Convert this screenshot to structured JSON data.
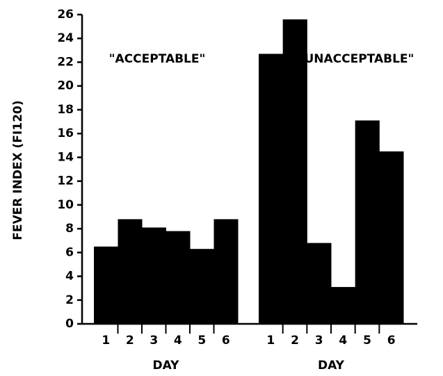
{
  "chart_data": {
    "type": "bar",
    "ylabel": "FEVER INDEX (FI120)",
    "color": "#000000",
    "ylim": [
      0,
      26
    ],
    "yticks": [
      0,
      2,
      4,
      6,
      8,
      10,
      12,
      14,
      16,
      18,
      20,
      22,
      24,
      26
    ],
    "groups": [
      {
        "label": "\"ACCEPTABLE\"",
        "xlabel": "DAY",
        "categories": [
          "1",
          "2",
          "3",
          "4",
          "5",
          "6"
        ],
        "values": [
          6.5,
          8.8,
          8.1,
          7.8,
          6.3,
          8.8
        ]
      },
      {
        "label": "\"UNACCEPTABLE\"",
        "xlabel": "DAY",
        "categories": [
          "1",
          "2",
          "3",
          "4",
          "5",
          "6"
        ],
        "values": [
          22.7,
          25.6,
          6.8,
          3.1,
          17.1,
          14.5
        ]
      }
    ]
  }
}
